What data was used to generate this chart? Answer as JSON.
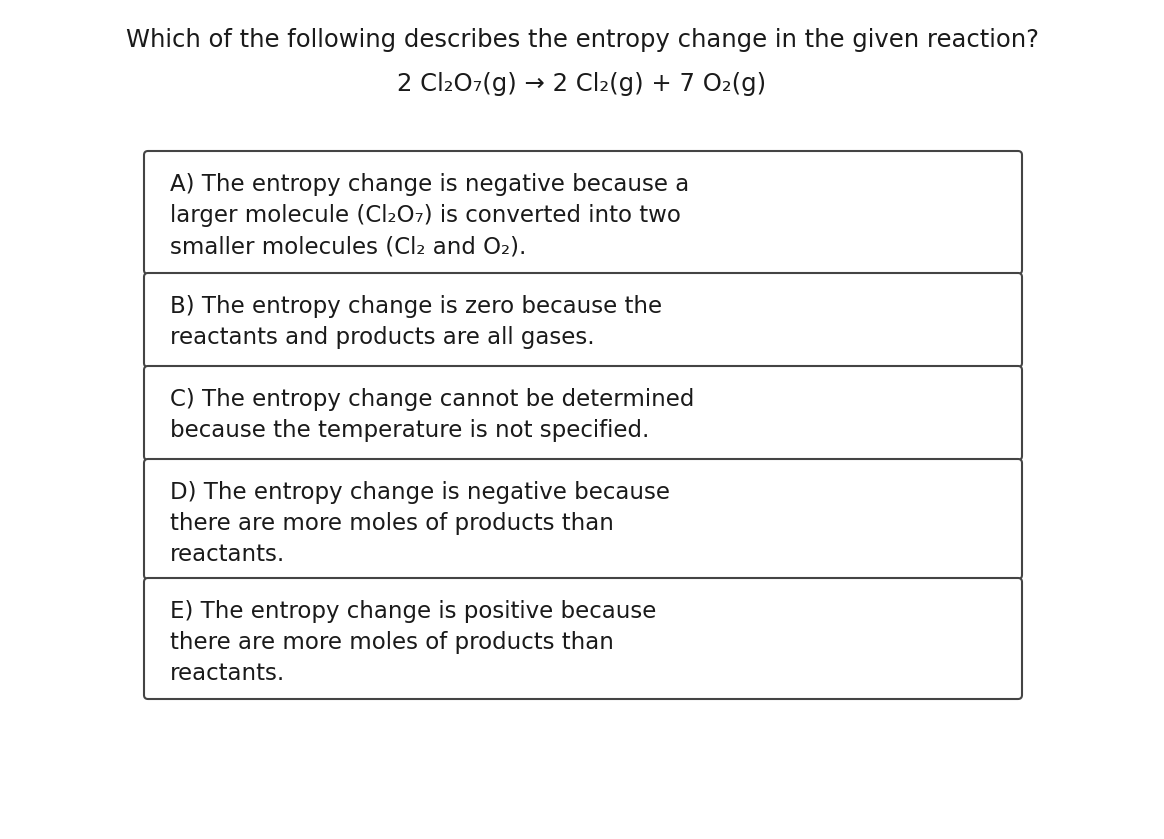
{
  "title_line1": "Which of the following describes the entropy change in the given reaction?",
  "title_line2": "2 Cl₂O₇(g) → 2 Cl₂(g) + 7 O₂(g)",
  "options": [
    "A) The entropy change is negative because a\nlarger molecule (Cl₂O₇) is converted into two\nsmaller molecules (Cl₂ and O₂).",
    "B) The entropy change is zero because the\nreactants and products are all gases.",
    "C) The entropy change cannot be determined\nbecause the temperature is not specified.",
    "D) The entropy change is negative because\nthere are more moles of products than\nreactants.",
    "E) The entropy change is positive because\nthere are more moles of products than\nreactants."
  ],
  "background_color": "#ffffff",
  "text_color": "#1a1a1a",
  "box_edge_color": "#444444",
  "title_fontsize": 17.5,
  "equation_fontsize": 17.5,
  "option_fontsize": 16.5,
  "fig_width": 11.64,
  "fig_height": 8.39,
  "dpi": 100
}
